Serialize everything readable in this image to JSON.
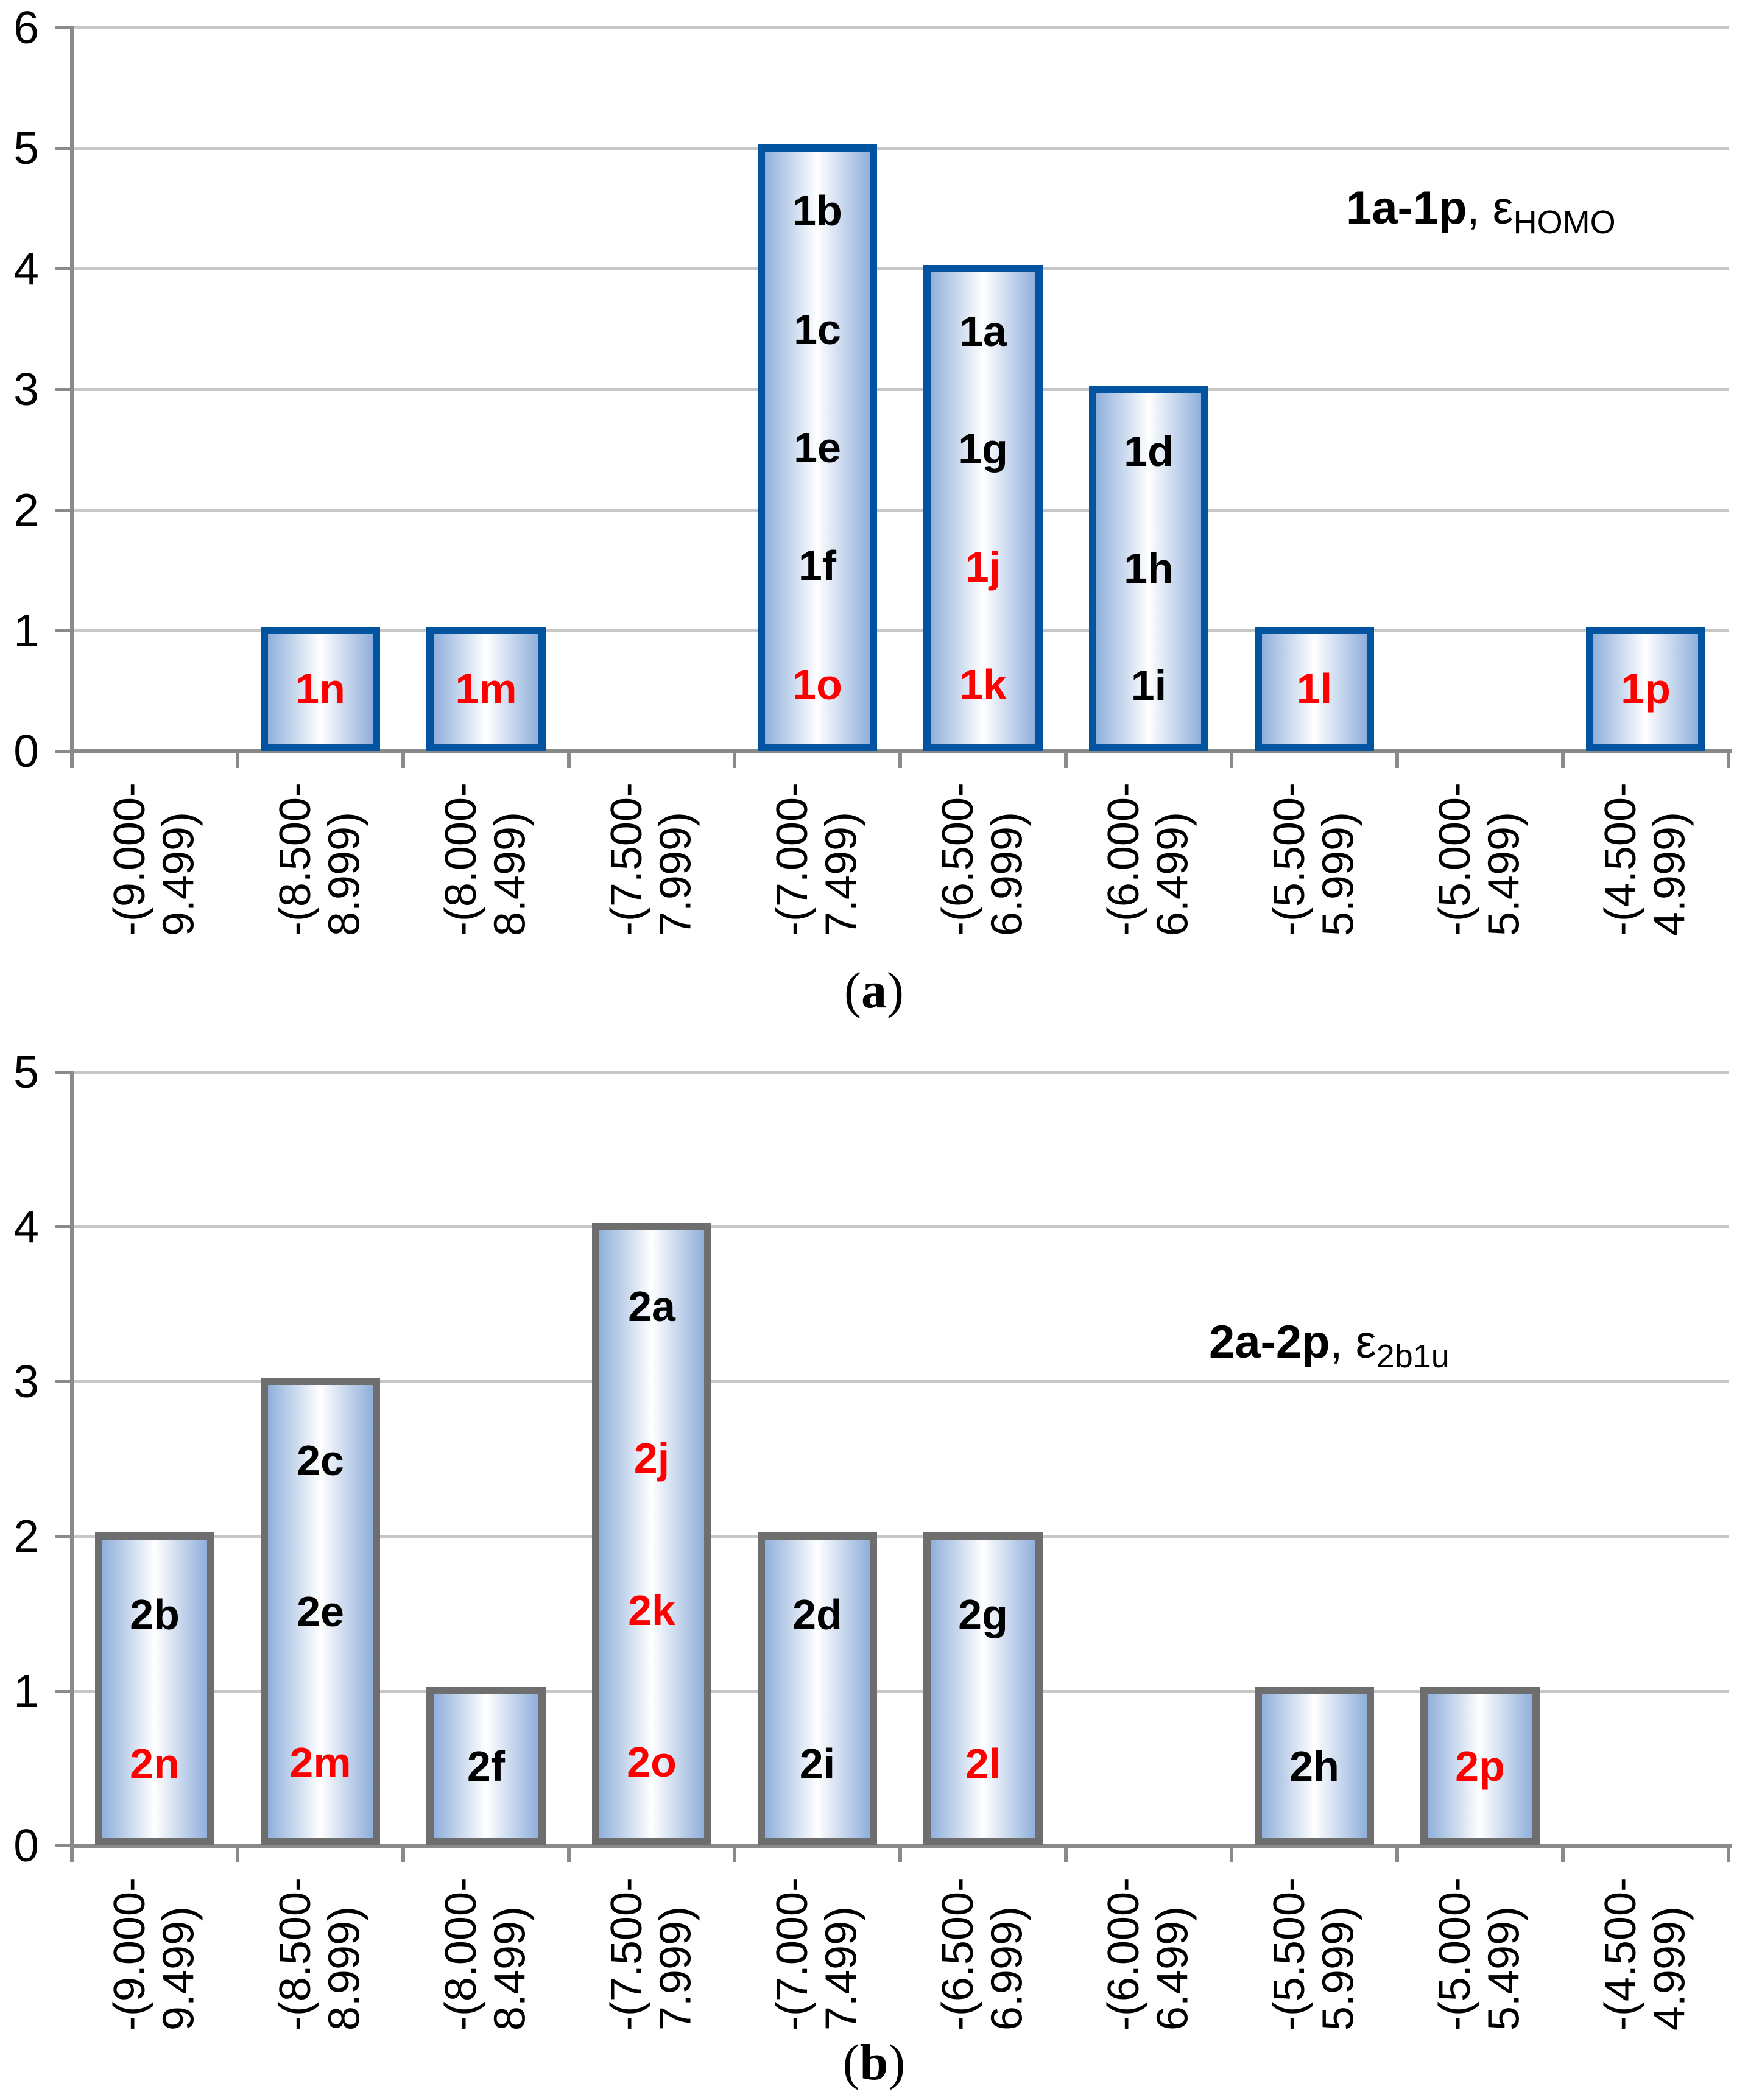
{
  "figure": {
    "caption_a": {
      "open": "(",
      "letter": "a",
      "close": ")"
    },
    "caption_b": {
      "open": "(",
      "letter": "b",
      "close": ")"
    }
  },
  "colors": {
    "bar_fill_edge": "#8fafdb",
    "bar_fill_center": "#ffffff",
    "bar_border_a": "#0054a0",
    "bar_border_b": "#6e6e6e",
    "axis": "#8a8a8a",
    "gridline": "#c7c7c7",
    "label_black": "#000000",
    "label_red": "#ff0000"
  },
  "chart_data": [
    {
      "type": "bar",
      "panel": "a",
      "annotation": {
        "bold": "1a-1p",
        "sep": ", ",
        "symbol": "ε",
        "sub": "HOMO"
      },
      "ylim": [
        0,
        6
      ],
      "yticks": [
        6,
        5,
        4,
        3,
        2,
        1,
        0
      ],
      "grid": true,
      "legend_position": "inside-top-right",
      "categories": [
        {
          "lines": [
            "-(9.000-",
            "9.499)"
          ]
        },
        {
          "lines": [
            "-(8.500-",
            "8.999)"
          ]
        },
        {
          "lines": [
            "-(8.000-",
            "8.499)"
          ]
        },
        {
          "lines": [
            "-(7.500-",
            "7.999)"
          ]
        },
        {
          "lines": [
            "-(7.000-",
            "7.499)"
          ]
        },
        {
          "lines": [
            "-(6.500-",
            "6.999)"
          ]
        },
        {
          "lines": [
            "-(6.000-",
            "6.499)"
          ]
        },
        {
          "lines": [
            "-(5.500-",
            "5.999)"
          ]
        },
        {
          "lines": [
            "-(5.000-",
            "5.499)"
          ]
        },
        {
          "lines": [
            "-(4.500-",
            "4.999)"
          ]
        }
      ],
      "values": [
        0,
        1,
        1,
        0,
        5,
        4,
        3,
        1,
        0,
        1
      ],
      "bar_labels": [
        [],
        [
          {
            "text": "1n",
            "color": "red"
          }
        ],
        [
          {
            "text": "1m",
            "color": "red"
          }
        ],
        [],
        [
          {
            "text": "1b",
            "color": "black"
          },
          {
            "text": "1c",
            "color": "black"
          },
          {
            "text": "1e",
            "color": "black"
          },
          {
            "text": "1f",
            "color": "black"
          },
          {
            "text": "1o",
            "color": "red"
          }
        ],
        [
          {
            "text": "1a",
            "color": "black"
          },
          {
            "text": "1g",
            "color": "black"
          },
          {
            "text": "1j",
            "color": "red"
          },
          {
            "text": "1k",
            "color": "red"
          }
        ],
        [
          {
            "text": "1d",
            "color": "black"
          },
          {
            "text": "1h",
            "color": "black"
          },
          {
            "text": "1i",
            "color": "black"
          }
        ],
        [
          {
            "text": "1l",
            "color": "red"
          }
        ],
        [],
        [
          {
            "text": "1p",
            "color": "red"
          }
        ]
      ]
    },
    {
      "type": "bar",
      "panel": "b",
      "annotation": {
        "bold": "2a-2p",
        "sep": ", ",
        "symbol": "ε",
        "sub": "2b1u"
      },
      "ylim": [
        0,
        5
      ],
      "yticks": [
        5,
        4,
        3,
        2,
        1,
        0
      ],
      "grid": true,
      "legend_position": "inside-top-right",
      "categories": [
        {
          "lines": [
            "-(9.000-",
            "9.499)"
          ]
        },
        {
          "lines": [
            "-(8.500-",
            "8.999)"
          ]
        },
        {
          "lines": [
            "-(8.000-",
            "8.499)"
          ]
        },
        {
          "lines": [
            "-(7.500-",
            "7.999)"
          ]
        },
        {
          "lines": [
            "-(7.000-",
            "7.499)"
          ]
        },
        {
          "lines": [
            "-(6.500-",
            "6.999)"
          ]
        },
        {
          "lines": [
            "-(6.000-",
            "6.499)"
          ]
        },
        {
          "lines": [
            "-(5.500-",
            "5.999)"
          ]
        },
        {
          "lines": [
            "-(5.000-",
            "5.499)"
          ]
        },
        {
          "lines": [
            "-(4.500-",
            "4.999)"
          ]
        }
      ],
      "values": [
        2,
        3,
        1,
        4,
        2,
        2,
        0,
        1,
        1,
        0
      ],
      "bar_labels": [
        [
          {
            "text": "2b",
            "color": "black"
          },
          {
            "text": "2n",
            "color": "red"
          }
        ],
        [
          {
            "text": "2c",
            "color": "black"
          },
          {
            "text": "2e",
            "color": "black"
          },
          {
            "text": "2m",
            "color": "red"
          }
        ],
        [
          {
            "text": "2f",
            "color": "black"
          }
        ],
        [
          {
            "text": "2a",
            "color": "black"
          },
          {
            "text": "2j",
            "color": "red"
          },
          {
            "text": "2k",
            "color": "red"
          },
          {
            "text": "2o",
            "color": "red"
          }
        ],
        [
          {
            "text": "2d",
            "color": "black"
          },
          {
            "text": "2i",
            "color": "black"
          }
        ],
        [
          {
            "text": "2g",
            "color": "black"
          },
          {
            "text": "2l",
            "color": "red"
          }
        ],
        [],
        [
          {
            "text": "2h",
            "color": "black"
          }
        ],
        [
          {
            "text": "2p",
            "color": "red"
          }
        ],
        []
      ]
    }
  ]
}
